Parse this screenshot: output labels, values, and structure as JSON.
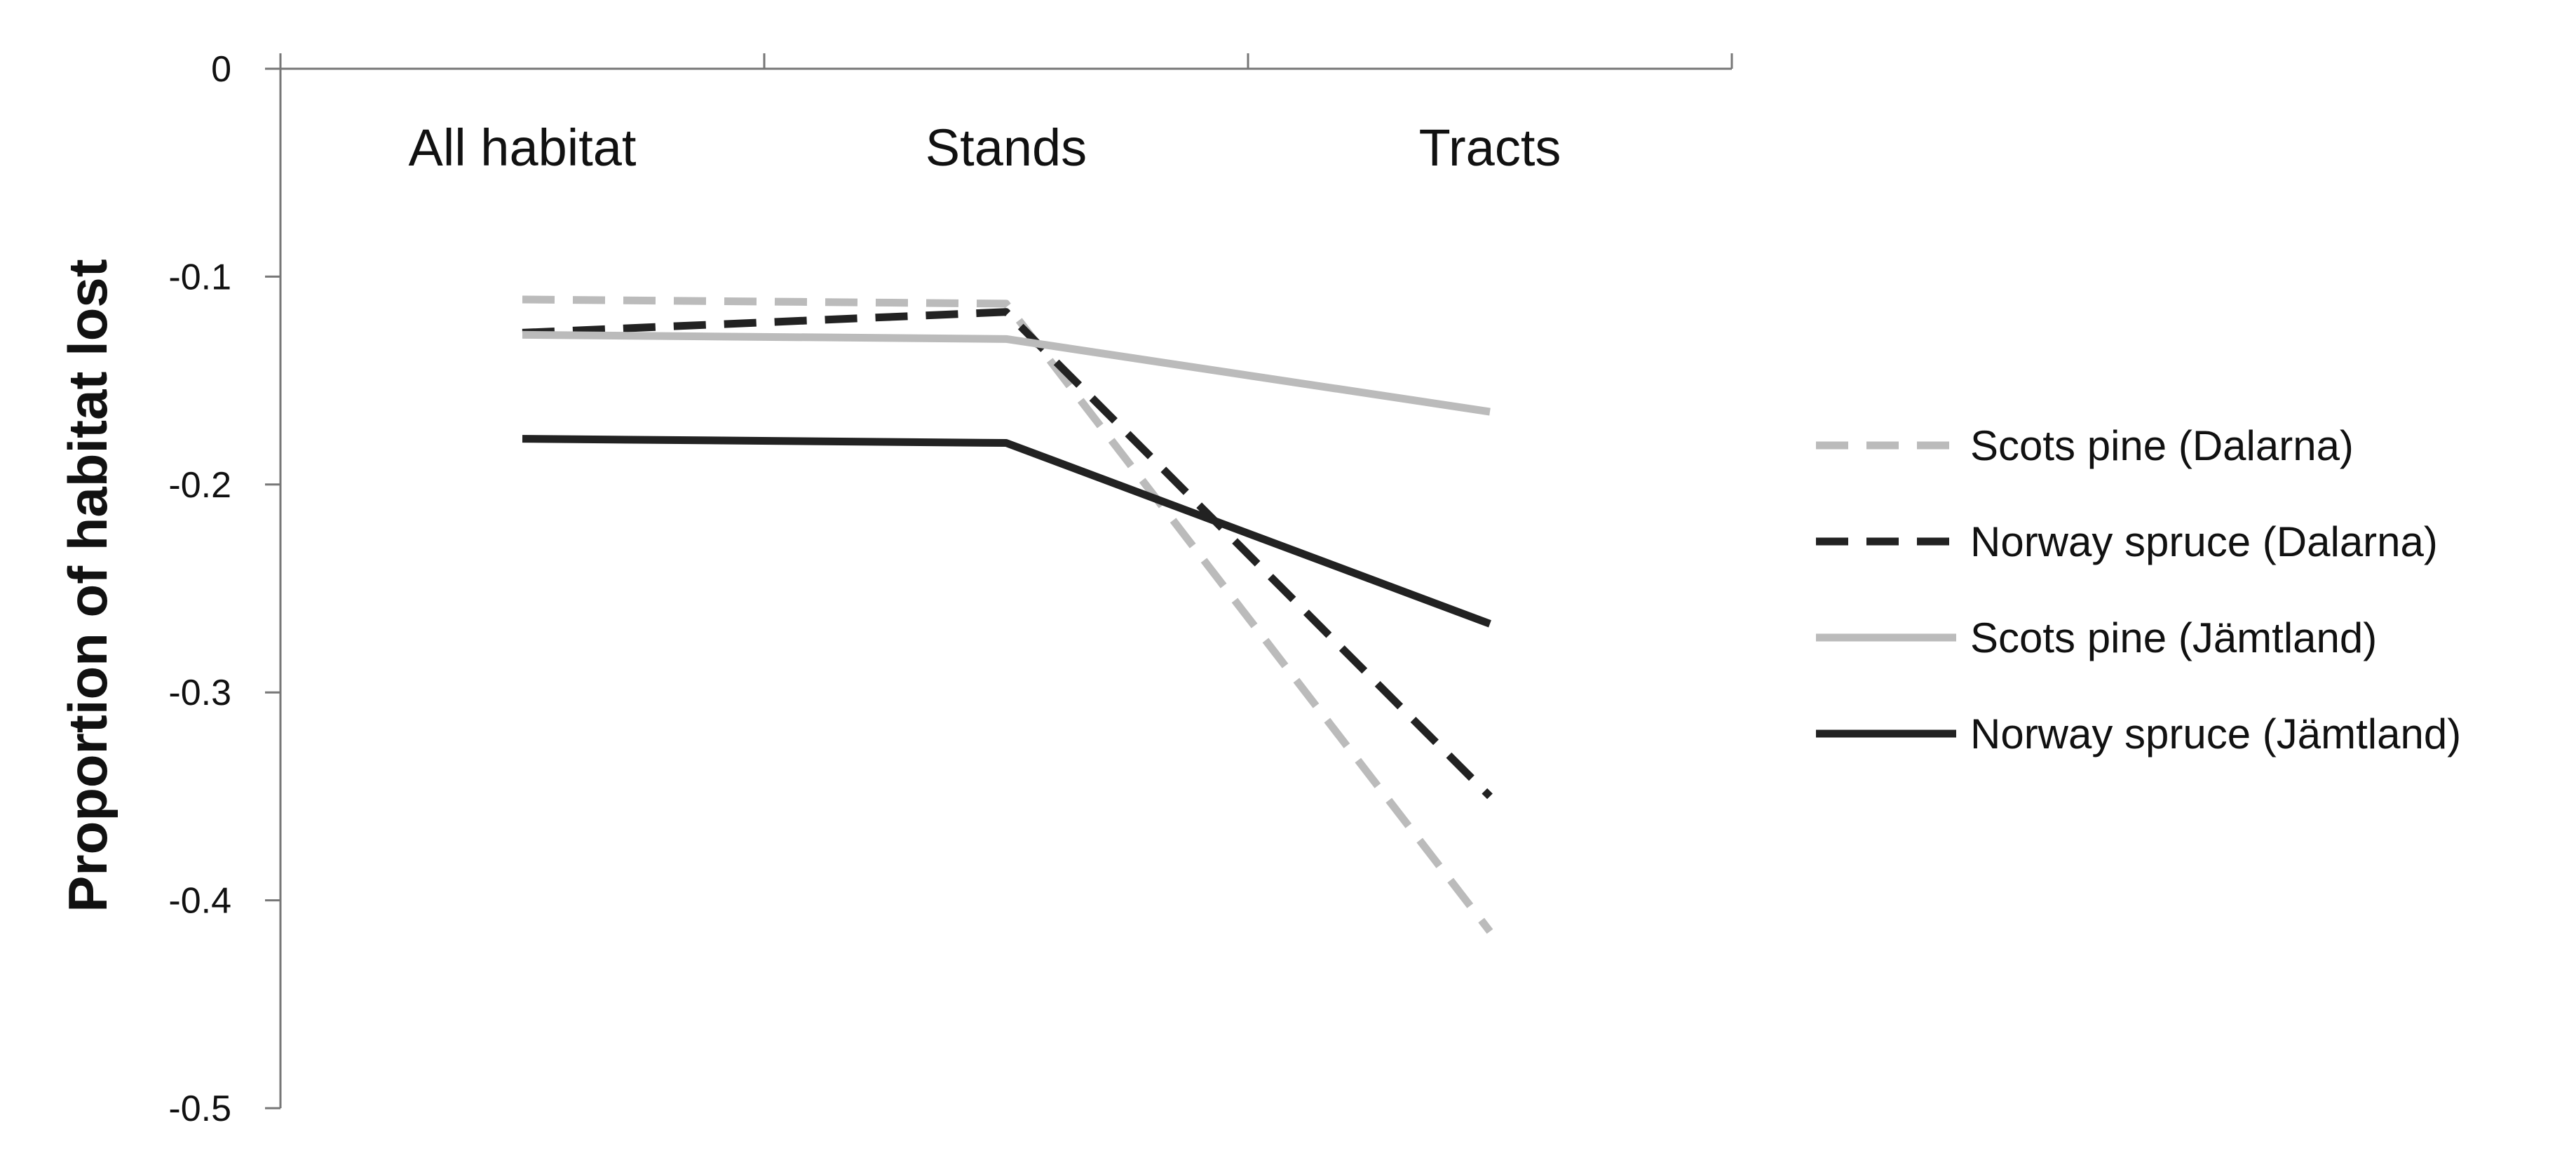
{
  "chart_data": {
    "type": "line",
    "title": "",
    "xlabel": "",
    "ylabel": "Proportion of habitat lost",
    "categories": [
      "All habitat",
      "Stands",
      "Tracts"
    ],
    "ylim": [
      -0.5,
      0
    ],
    "yticks": [
      "0",
      "-0.1",
      "-0.2",
      "-0.3",
      "-0.4",
      "-0.5"
    ],
    "ytick_values": [
      0,
      -0.1,
      -0.2,
      -0.3,
      -0.4,
      -0.5
    ],
    "grid": false,
    "x_axis_position": "top",
    "legend_position": "right",
    "series": [
      {
        "name": "Scots pine (Dalarna)",
        "values": [
          -0.111,
          -0.113,
          -0.415
        ],
        "color": "#bbbbbb",
        "dashed": true
      },
      {
        "name": "Norway spruce (Dalarna)",
        "values": [
          -0.127,
          -0.117,
          -0.35
        ],
        "color": "#222222",
        "dashed": true
      },
      {
        "name": "Scots  pine (Jämtland)",
        "values": [
          -0.128,
          -0.13,
          -0.165
        ],
        "color": "#bbbbbb",
        "dashed": false
      },
      {
        "name": "Norway spruce (Jämtland)",
        "values": [
          -0.178,
          -0.18,
          -0.267
        ],
        "color": "#222222",
        "dashed": false
      }
    ]
  }
}
